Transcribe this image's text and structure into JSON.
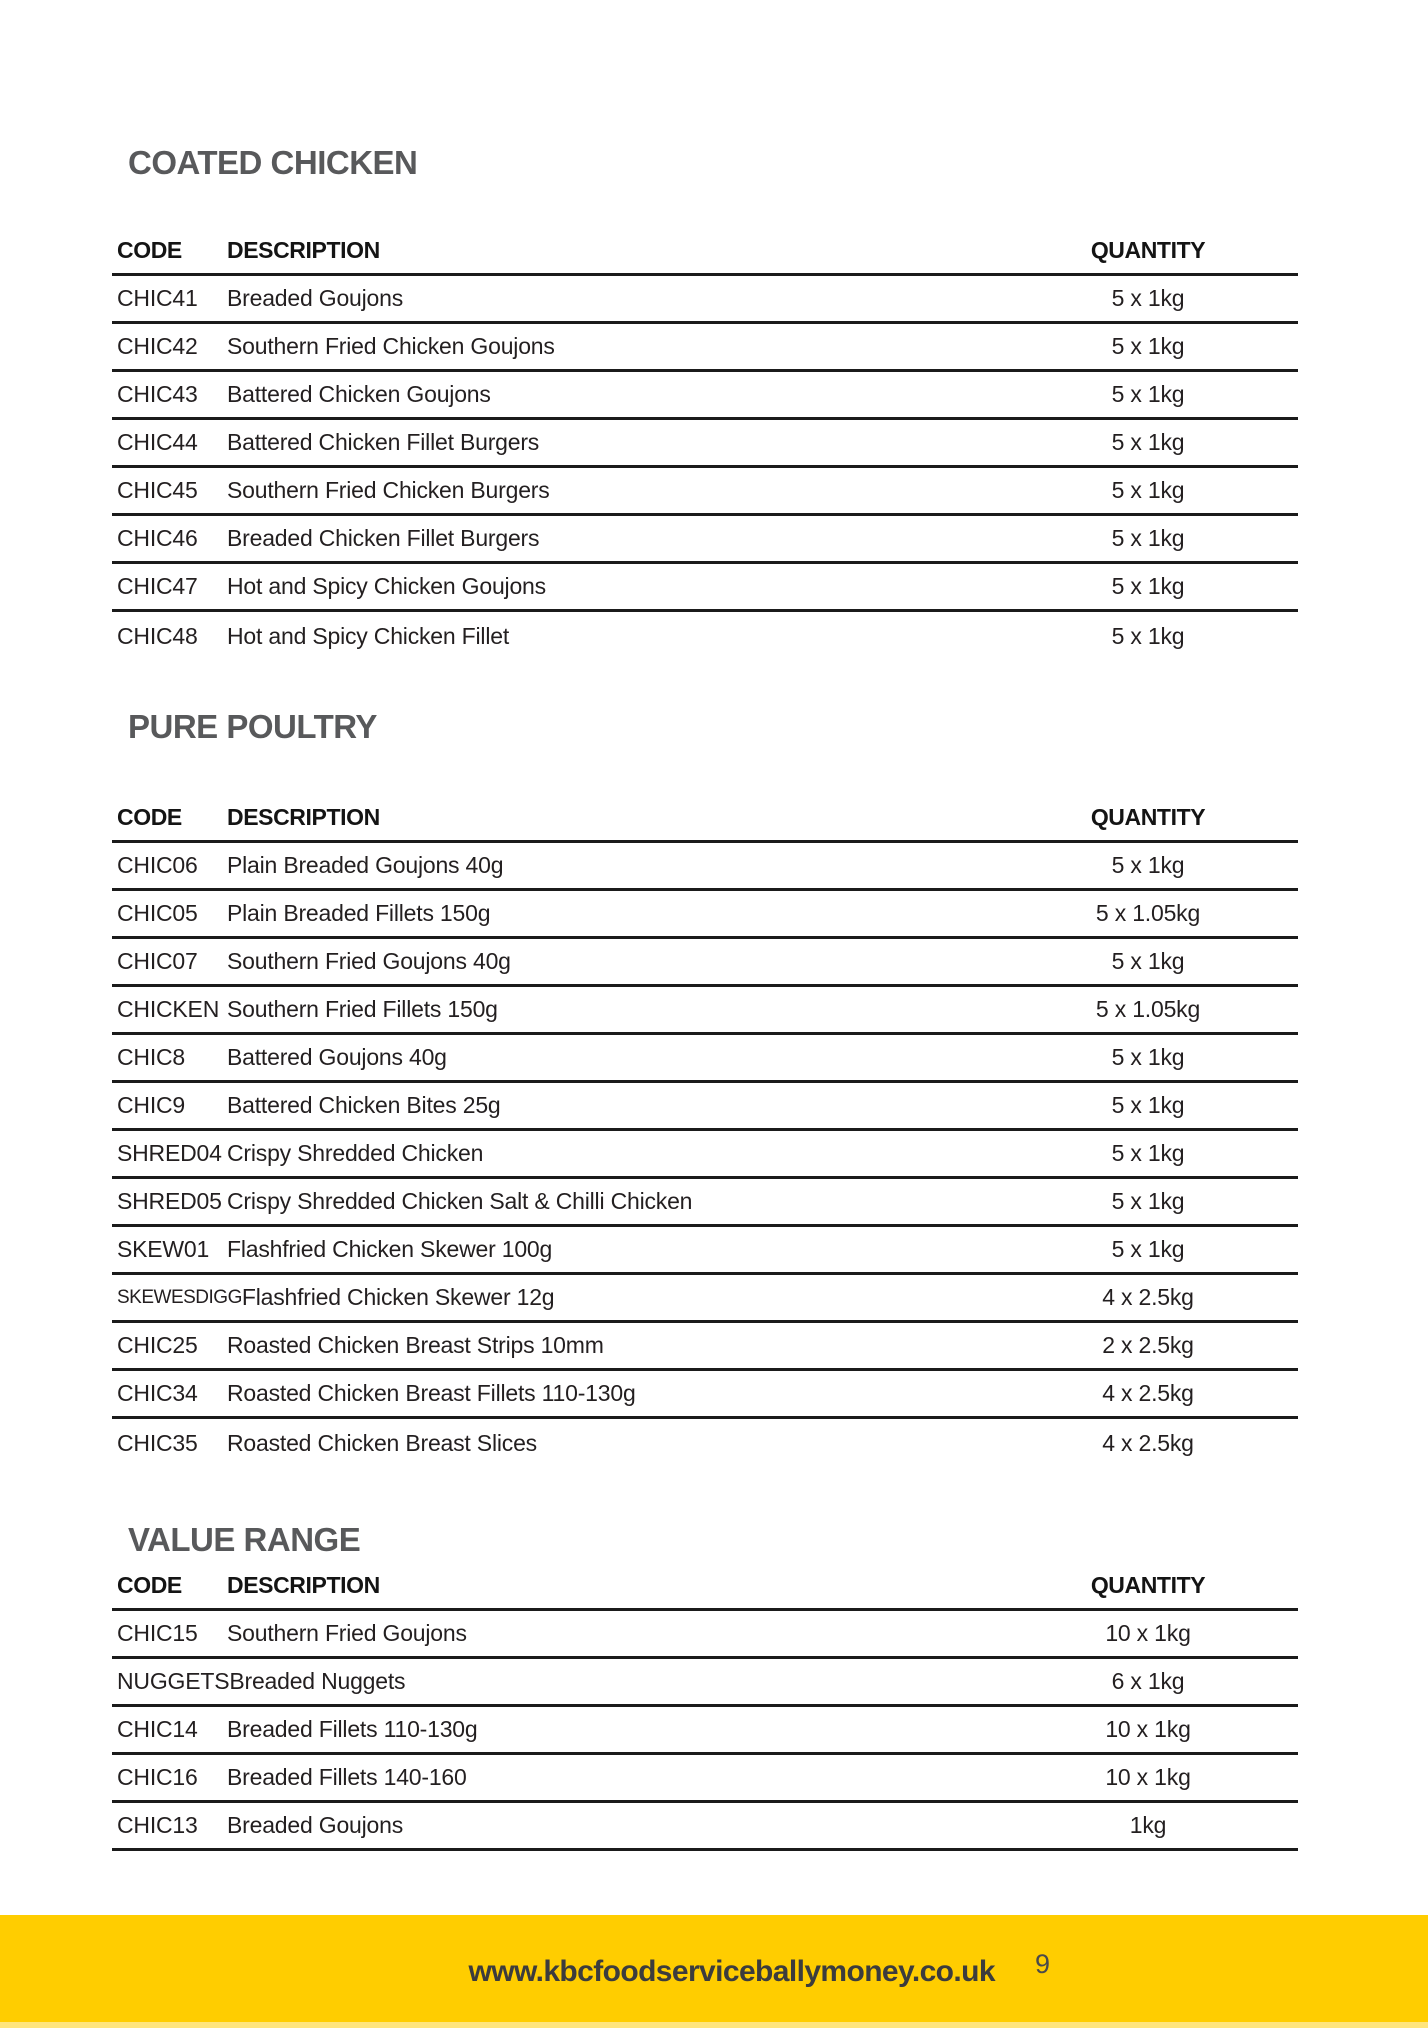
{
  "columns": {
    "code": "CODE",
    "description": "DESCRIPTION",
    "quantity": "QUANTITY"
  },
  "sections": [
    {
      "title": "COATED CHICKEN",
      "rows": [
        {
          "code": "CHIC41",
          "description": "Breaded Goujons",
          "quantity": "5 x 1kg"
        },
        {
          "code": "CHIC42",
          "description": "Southern Fried Chicken Goujons",
          "quantity": "5 x 1kg"
        },
        {
          "code": "CHIC43",
          "description": "Battered Chicken Goujons",
          "quantity": "5 x 1kg"
        },
        {
          "code": "CHIC44",
          "description": "Battered Chicken Fillet Burgers",
          "quantity": "5 x 1kg"
        },
        {
          "code": "CHIC45",
          "description": "Southern Fried Chicken Burgers",
          "quantity": "5 x 1kg"
        },
        {
          "code": "CHIC46",
          "description": "Breaded Chicken Fillet Burgers",
          "quantity": "5 x 1kg"
        },
        {
          "code": "CHIC47",
          "description": "Hot and Spicy Chicken Goujons",
          "quantity": "5 x 1kg"
        },
        {
          "code": "CHIC48",
          "description": "Hot and Spicy Chicken Fillet",
          "quantity": "5 x 1kg"
        }
      ]
    },
    {
      "title": "PURE POULTRY",
      "rows": [
        {
          "code": "CHIC06",
          "description": "Plain Breaded Goujons 40g",
          "quantity": "5 x 1kg"
        },
        {
          "code": "CHIC05",
          "description": "Plain Breaded Fillets 150g",
          "quantity": "5 x 1.05kg"
        },
        {
          "code": "CHIC07",
          "description": "Southern Fried Goujons 40g",
          "quantity": "5 x 1kg"
        },
        {
          "code": "CHICKEN",
          "description": "Southern Fried Fillets 150g",
          "quantity": "5 x 1.05kg"
        },
        {
          "code": "CHIC8",
          "description": "Battered Goujons 40g",
          "quantity": "5 x 1kg"
        },
        {
          "code": "CHIC9",
          "description": "Battered Chicken Bites 25g",
          "quantity": "5 x 1kg"
        },
        {
          "code": "SHRED04",
          "description": "Crispy Shredded Chicken",
          "quantity": "5 x 1kg"
        },
        {
          "code": "SHRED05",
          "description": "Crispy Shredded Chicken Salt & Chilli Chicken",
          "quantity": "5 x 1kg"
        },
        {
          "code": "SKEW01",
          "description": "Flashfried Chicken Skewer 100g",
          "quantity": "5 x 1kg"
        },
        {
          "code": "SKEWESDIGG",
          "description": "Flashfried Chicken Skewer 12g",
          "quantity": "4 x 2.5kg"
        },
        {
          "code": "CHIC25",
          "description": "Roasted Chicken Breast Strips 10mm",
          "quantity": "2 x 2.5kg"
        },
        {
          "code": "CHIC34",
          "description": "Roasted Chicken Breast Fillets 110-130g",
          "quantity": "4 x 2.5kg"
        },
        {
          "code": "CHIC35",
          "description": "Roasted Chicken Breast Slices",
          "quantity": "4 x 2.5kg"
        }
      ]
    },
    {
      "title": "VALUE RANGE",
      "rows": [
        {
          "code": "CHIC15",
          "description": "Southern Fried Goujons",
          "quantity": "10 x 1kg"
        },
        {
          "code": "NUGGETS",
          "description": "Breaded Nuggets",
          "quantity": "6 x 1kg"
        },
        {
          "code": "CHIC14",
          "description": "Breaded Fillets 110-130g",
          "quantity": "10 x 1kg"
        },
        {
          "code": "CHIC16",
          "description": "Breaded Fillets 140-160",
          "quantity": "10 x 1kg"
        },
        {
          "code": "CHIC13",
          "description": "Breaded Goujons",
          "quantity": "1kg"
        }
      ]
    }
  ],
  "footer": {
    "url": "www.kbcfoodserviceballymoney.co.uk",
    "page_number": "9",
    "bar_color": "#ffcd00",
    "bar_edge_color": "#ffe57d"
  }
}
